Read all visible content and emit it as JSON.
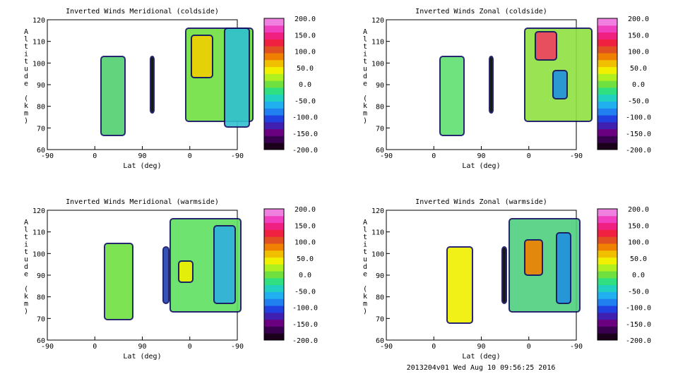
{
  "footer": "2013204v01 Wed Aug 10 09:56:25 2016",
  "colorbar": {
    "labels": [
      "200.0",
      "150.0",
      "100.0",
      "50.0",
      "0.0",
      "-50.0",
      "-100.0",
      "-150.0",
      "-200.0"
    ],
    "colors": [
      "#1a001a",
      "#3a0050",
      "#6a0080",
      "#4020b0",
      "#2040e0",
      "#2080f0",
      "#20b0f0",
      "#20d0c0",
      "#30e080",
      "#70e040",
      "#b0f020",
      "#f0f000",
      "#f0c000",
      "#f08000",
      "#e05020",
      "#f02040",
      "#f02080",
      "#f040c0",
      "#f080e0"
    ]
  },
  "chart_data": [
    {
      "type": "heatmap",
      "title": "Inverted Winds Meridional (coldside)",
      "xlabel": "Lat (deg)",
      "ylabel": "Altitude (km)",
      "xticks": [
        "-90",
        "0",
        "90",
        "0",
        "-90"
      ],
      "yticks": [
        60,
        70,
        80,
        90,
        100,
        110,
        120
      ],
      "ylim": [
        60,
        120
      ],
      "zlim": [
        -200,
        200
      ],
      "colorbar_ticks": [
        200,
        150,
        100,
        50,
        0,
        -50,
        -100,
        -150,
        -200
      ]
    },
    {
      "type": "heatmap",
      "title": "Inverted Winds Zonal (coldside)",
      "xlabel": "Lat (deg)",
      "ylabel": "Altitude (km)",
      "xticks": [
        "-90",
        "0",
        "90",
        "0",
        "-90"
      ],
      "yticks": [
        60,
        70,
        80,
        90,
        100,
        110,
        120
      ],
      "ylim": [
        60,
        120
      ],
      "zlim": [
        -200,
        200
      ],
      "colorbar_ticks": [
        200,
        150,
        100,
        50,
        0,
        -50,
        -100,
        -150,
        -200
      ]
    },
    {
      "type": "heatmap",
      "title": "Inverted Winds Meridional (warmside)",
      "xlabel": "Lat (deg)",
      "ylabel": "Altitude (km)",
      "xticks": [
        "-90",
        "0",
        "90",
        "0",
        "-90"
      ],
      "yticks": [
        60,
        70,
        80,
        90,
        100,
        110,
        120
      ],
      "ylim": [
        60,
        120
      ],
      "zlim": [
        -200,
        200
      ],
      "colorbar_ticks": [
        200,
        150,
        100,
        50,
        0,
        -50,
        -100,
        -150,
        -200
      ]
    },
    {
      "type": "heatmap",
      "title": "Inverted Winds Zonal (warmside)",
      "xlabel": "Lat (deg)",
      "ylabel": "Altitude (km)",
      "xticks": [
        "-90",
        "0",
        "90",
        "0",
        "-90"
      ],
      "yticks": [
        60,
        70,
        80,
        90,
        100,
        110,
        120
      ],
      "ylim": [
        60,
        120
      ],
      "zlim": [
        -200,
        200
      ],
      "colorbar_ticks": [
        200,
        150,
        100,
        50,
        0,
        -50,
        -100,
        -150,
        -200
      ]
    }
  ]
}
